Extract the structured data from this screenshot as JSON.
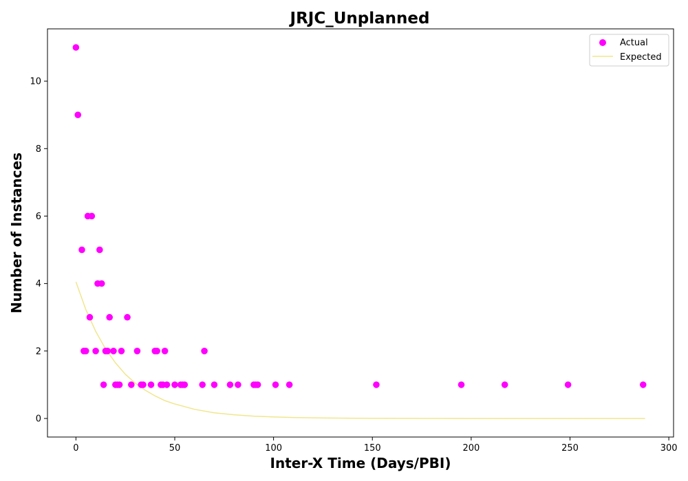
{
  "chart_data": {
    "type": "scatter",
    "title": "JRJC_Unplanned",
    "xlabel": "Inter-X Time (Days/PBI)",
    "ylabel": "Number of Instances",
    "xlim": [
      -14.4,
      302.4
    ],
    "ylim": [
      -0.55,
      11.55
    ],
    "xticks": [
      0,
      50,
      100,
      150,
      200,
      250,
      300
    ],
    "yticks": [
      0,
      2,
      4,
      6,
      8,
      10
    ],
    "grid": false,
    "legend_position": "top-right",
    "colors": {
      "actual": "#ff00ff",
      "expected": "#f0e68c"
    },
    "series": [
      {
        "name": "Actual",
        "kind": "scatter",
        "points": [
          [
            0,
            11
          ],
          [
            1,
            9
          ],
          [
            3,
            5
          ],
          [
            4,
            2
          ],
          [
            5,
            2
          ],
          [
            6,
            6
          ],
          [
            7,
            3
          ],
          [
            8,
            6
          ],
          [
            10,
            2
          ],
          [
            11,
            4
          ],
          [
            12,
            5
          ],
          [
            13,
            4
          ],
          [
            14,
            1
          ],
          [
            15,
            2
          ],
          [
            16,
            2
          ],
          [
            17,
            3
          ],
          [
            19,
            2
          ],
          [
            20,
            1
          ],
          [
            21,
            1
          ],
          [
            22,
            1
          ],
          [
            23,
            2
          ],
          [
            26,
            3
          ],
          [
            28,
            1
          ],
          [
            31,
            2
          ],
          [
            33,
            1
          ],
          [
            34,
            1
          ],
          [
            38,
            1
          ],
          [
            40,
            2
          ],
          [
            41,
            2
          ],
          [
            43,
            1
          ],
          [
            44,
            1
          ],
          [
            45,
            2
          ],
          [
            46,
            1
          ],
          [
            50,
            1
          ],
          [
            53,
            1
          ],
          [
            54,
            1
          ],
          [
            55,
            1
          ],
          [
            64,
            1
          ],
          [
            65,
            2
          ],
          [
            70,
            1
          ],
          [
            78,
            1
          ],
          [
            82,
            1
          ],
          [
            90,
            1
          ],
          [
            91,
            1
          ],
          [
            92,
            1
          ],
          [
            101,
            1
          ],
          [
            108,
            1
          ],
          [
            152,
            1
          ],
          [
            195,
            1
          ],
          [
            217,
            1
          ],
          [
            249,
            1
          ],
          [
            287,
            1
          ]
        ]
      },
      {
        "name": "Expected",
        "kind": "line",
        "x": [
          0,
          5,
          10,
          15,
          20,
          25,
          30,
          35,
          40,
          45,
          50,
          60,
          70,
          80,
          90,
          100,
          110,
          125,
          150,
          175,
          200,
          225,
          250,
          275,
          288
        ],
        "y": [
          4.05,
          3.23,
          2.58,
          2.06,
          1.65,
          1.31,
          1.05,
          0.84,
          0.67,
          0.53,
          0.43,
          0.27,
          0.17,
          0.11,
          0.07,
          0.045,
          0.029,
          0.015,
          0.0049,
          0.0016,
          0.0005,
          0.0002,
          0.0001,
          0.0,
          0.0
        ]
      }
    ]
  }
}
